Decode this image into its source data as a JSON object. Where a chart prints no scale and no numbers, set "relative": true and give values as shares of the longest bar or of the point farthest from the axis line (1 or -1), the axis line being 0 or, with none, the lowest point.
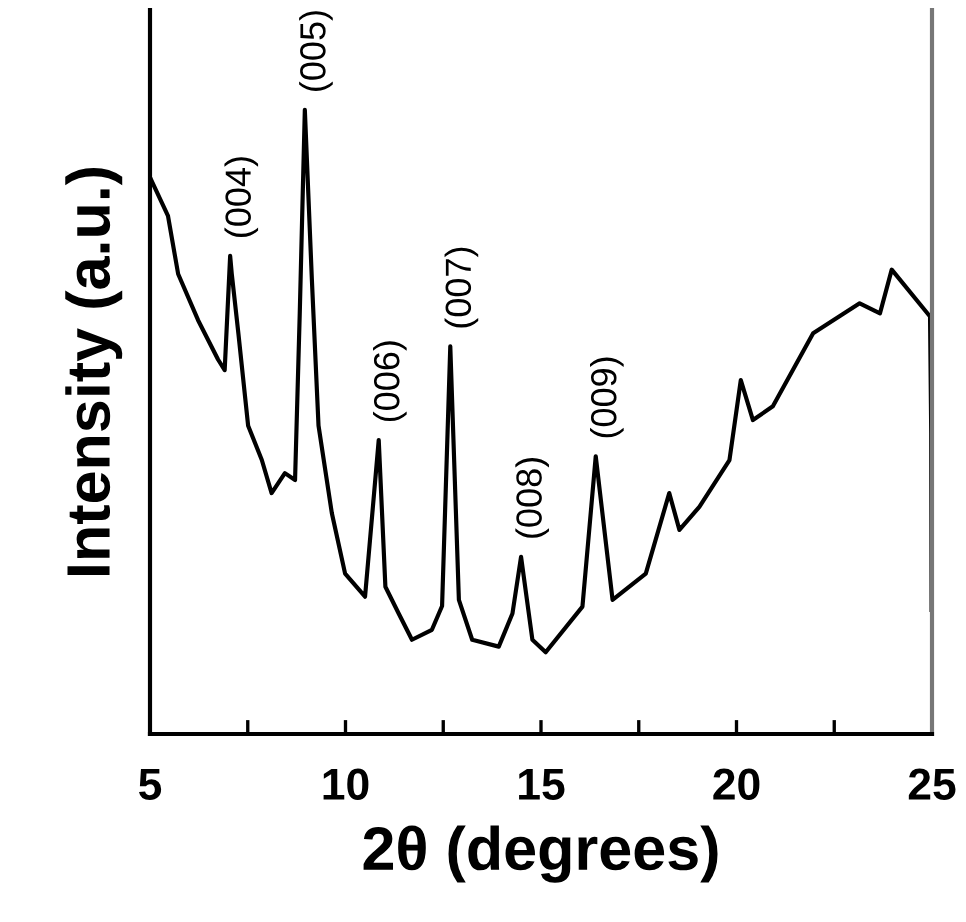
{
  "chart_data": {
    "type": "line",
    "relative": true,
    "xlabel": "2θ (degrees)",
    "ylabel": "Intensity (a.u.)",
    "xlim": [
      5,
      25
    ],
    "xticks": [
      5,
      {
        "value": 7.5,
        "label": null
      },
      10,
      {
        "value": 12.5,
        "label": null
      },
      15,
      {
        "value": 17.5,
        "label": null
      },
      20,
      {
        "value": 22.5,
        "label": null
      },
      25
    ],
    "tick_labels": "x",
    "grid": false,
    "legend": false,
    "marker": "none",
    "line_style": "solid",
    "series": [
      {
        "color": "#000000",
        "x": [
          5.03,
          5.46,
          5.72,
          6.23,
          6.74,
          6.91,
          7.05,
          7.09,
          7.26,
          7.51,
          7.86,
          8.11,
          8.45,
          8.71,
          8.83,
          8.96,
          9.14,
          9.31,
          9.65,
          9.99,
          10.5,
          10.85,
          11.02,
          11.36,
          11.7,
          12.21,
          12.47,
          12.68,
          12.9,
          13.24,
          13.92,
          14.27,
          14.49,
          14.78,
          15.12,
          16.06,
          16.4,
          16.83,
          17.68,
          18.28,
          18.54,
          19.05,
          19.82,
          20.11,
          20.42,
          20.93,
          21.96,
          23.15,
          23.67,
          23.97,
          24.95,
          24.98,
          24.99
        ],
        "values": [
          0.888,
          0.83,
          0.737,
          0.663,
          0.6,
          0.583,
          0.766,
          0.738,
          0.642,
          0.494,
          0.439,
          0.386,
          0.418,
          0.407,
          0.674,
          1.0,
          0.728,
          0.494,
          0.354,
          0.257,
          0.22,
          0.471,
          0.236,
          0.193,
          0.151,
          0.167,
          0.205,
          0.621,
          0.215,
          0.151,
          0.14,
          0.193,
          0.284,
          0.151,
          0.131,
          0.204,
          0.445,
          0.215,
          0.257,
          0.386,
          0.327,
          0.364,
          0.439,
          0.567,
          0.503,
          0.525,
          0.642,
          0.69,
          0.674,
          0.744,
          0.669,
          0.482,
          0.199
        ]
      }
    ],
    "annotations": [
      {
        "text": "(004)",
        "x": 7.05,
        "y": 0.766
      },
      {
        "text": "(005)",
        "x": 8.96,
        "y": 1.0
      },
      {
        "text": "(006)",
        "x": 10.85,
        "y": 0.471
      },
      {
        "text": "(007)",
        "x": 12.68,
        "y": 0.621
      },
      {
        "text": "(008)",
        "x": 14.49,
        "y": 0.284
      },
      {
        "text": "(009)",
        "x": 16.4,
        "y": 0.445
      }
    ]
  }
}
